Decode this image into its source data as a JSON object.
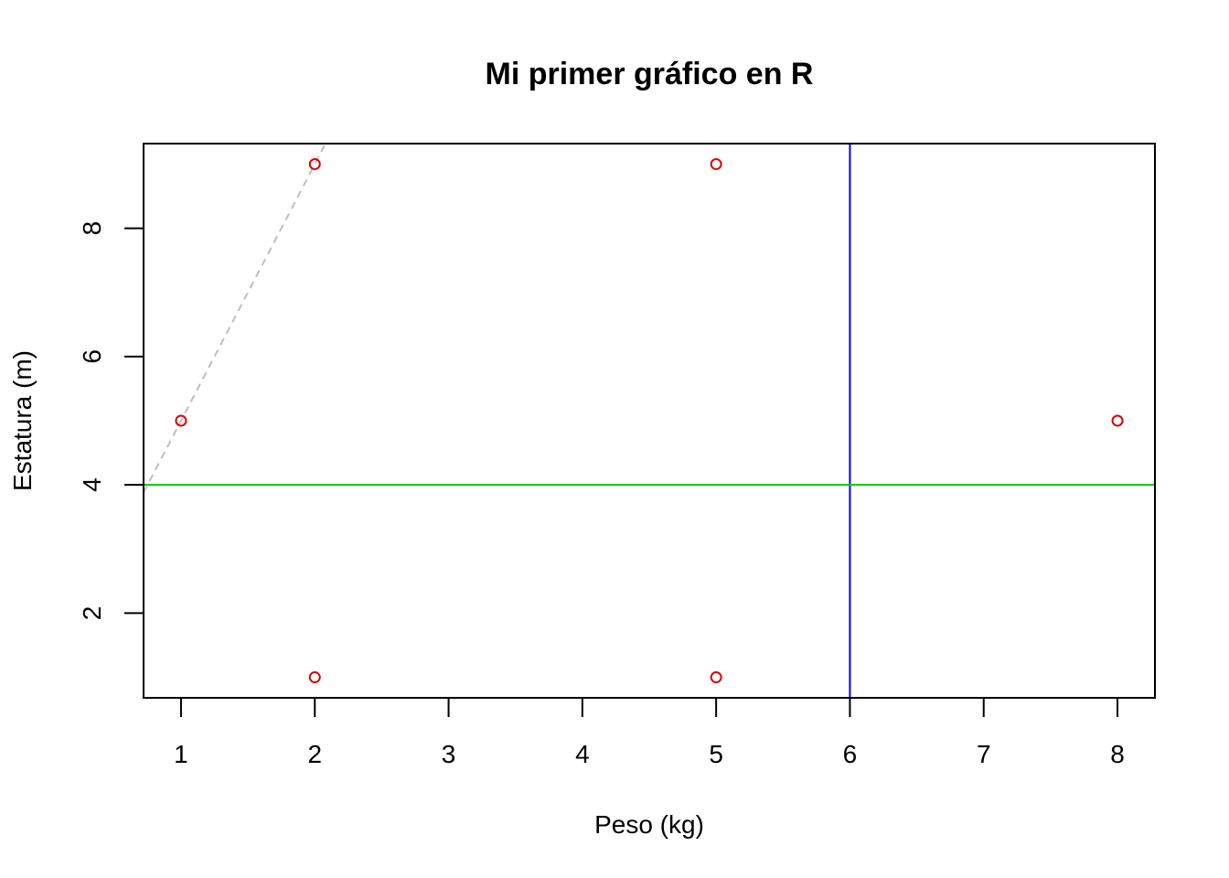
{
  "chart_data": {
    "type": "scatter",
    "title": "Mi primer gráfico en R",
    "xlabel": "Peso (kg)",
    "ylabel": "Estatura (m)",
    "x": [
      1,
      2,
      2,
      5,
      5,
      8
    ],
    "y": [
      5,
      9,
      1,
      9,
      1,
      5
    ],
    "x_ticks": [
      1,
      2,
      3,
      4,
      5,
      6,
      7,
      8
    ],
    "y_ticks": [
      2,
      4,
      6,
      8
    ],
    "xlim": [
      0.72,
      8.28
    ],
    "ylim": [
      0.68,
      9.32
    ],
    "point_color": "#DF0000",
    "grid": false,
    "reference_lines": [
      {
        "orientation": "vertical",
        "x": 6,
        "color": "#0000FF",
        "style": "solid"
      },
      {
        "orientation": "horizontal",
        "y": 4,
        "color": "#00CC00",
        "style": "solid"
      },
      {
        "orientation": "abline",
        "intercept": 1,
        "slope": 4,
        "color": "#BEBEBE",
        "style": "dashed"
      }
    ]
  }
}
